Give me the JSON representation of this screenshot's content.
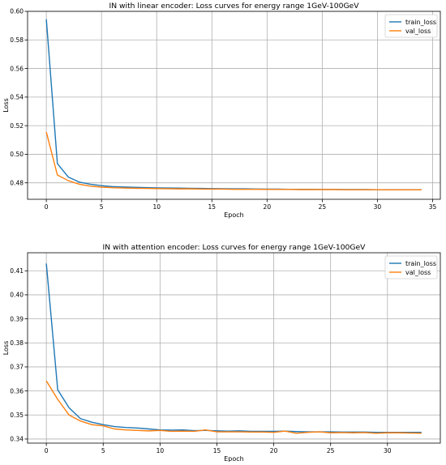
{
  "chart_data": [
    {
      "type": "line",
      "title": "IN with linear encoder: Loss curves for energy range 1GeV-100GeV",
      "xlabel": "Epoch",
      "ylabel": "Loss",
      "xlim": [
        -1.7,
        35.7
      ],
      "ylim": [
        0.4685,
        0.6
      ],
      "xticks": [
        0,
        5,
        10,
        15,
        20,
        25,
        30,
        35
      ],
      "yticks": [
        0.48,
        0.5,
        0.52,
        0.54,
        0.56,
        0.58,
        0.6
      ],
      "ytick_labels": [
        "0.48",
        "0.50",
        "0.52",
        "0.54",
        "0.56",
        "0.58",
        "0.60"
      ],
      "grid": true,
      "legend": "top-right",
      "series": [
        {
          "name": "train_loss",
          "color": "#1f77b4",
          "x": [
            0,
            1,
            2,
            3,
            4,
            5,
            6,
            7,
            8,
            9,
            10,
            11,
            12,
            13,
            14,
            15,
            16,
            17,
            18,
            19,
            20,
            21,
            22,
            23,
            24,
            25,
            26,
            27,
            28,
            29,
            30,
            31,
            32,
            33,
            34
          ],
          "values": [
            0.5945,
            0.4935,
            0.484,
            0.4805,
            0.479,
            0.478,
            0.4774,
            0.4771,
            0.4769,
            0.4767,
            0.4765,
            0.4764,
            0.4763,
            0.4762,
            0.4761,
            0.476,
            0.4759,
            0.4758,
            0.4758,
            0.4757,
            0.4756,
            0.4756,
            0.4755,
            0.4755,
            0.4755,
            0.4754,
            0.4754,
            0.4753,
            0.4753,
            0.4753,
            0.4752,
            0.4752,
            0.4752,
            0.4752,
            0.4752
          ]
        },
        {
          "name": "val_loss",
          "color": "#ff7f0e",
          "x": [
            0,
            1,
            2,
            3,
            4,
            5,
            6,
            7,
            8,
            9,
            10,
            11,
            12,
            13,
            14,
            15,
            16,
            17,
            18,
            19,
            20,
            21,
            22,
            23,
            24,
            25,
            26,
            27,
            28,
            29,
            30,
            31,
            32,
            33,
            34
          ],
          "values": [
            0.5155,
            0.4855,
            0.4815,
            0.479,
            0.4777,
            0.477,
            0.4766,
            0.4764,
            0.4762,
            0.4761,
            0.476,
            0.4759,
            0.4758,
            0.4758,
            0.4757,
            0.4756,
            0.4756,
            0.4755,
            0.4755,
            0.4755,
            0.4754,
            0.4754,
            0.4754,
            0.4753,
            0.4753,
            0.4753,
            0.4753,
            0.4752,
            0.4752,
            0.4752,
            0.4752,
            0.4751,
            0.4751,
            0.4751,
            0.4751
          ]
        }
      ]
    },
    {
      "type": "line",
      "title": "IN with attention encoder: Loss curves for energy range 1GeV-100GeV",
      "xlabel": "Epoch",
      "ylabel": "Loss",
      "xlim": [
        -1.65,
        34.65
      ],
      "ylim": [
        0.3383,
        0.4175
      ],
      "xticks": [
        0,
        5,
        10,
        15,
        20,
        25,
        30
      ],
      "yticks": [
        0.34,
        0.35,
        0.36,
        0.37,
        0.38,
        0.39,
        0.4,
        0.41
      ],
      "ytick_labels": [
        "0.34",
        "0.35",
        "0.36",
        "0.37",
        "0.38",
        "0.39",
        "0.40",
        "0.41"
      ],
      "grid": true,
      "legend": "top-right",
      "series": [
        {
          "name": "train_loss",
          "color": "#1f77b4",
          "x": [
            0,
            1,
            2,
            3,
            4,
            5,
            6,
            7,
            8,
            9,
            10,
            11,
            12,
            13,
            14,
            15,
            16,
            17,
            18,
            19,
            20,
            21,
            22,
            23,
            24,
            25,
            26,
            27,
            28,
            29,
            30,
            31,
            32,
            33
          ],
          "values": [
            0.413,
            0.3605,
            0.353,
            0.3485,
            0.347,
            0.346,
            0.3452,
            0.3448,
            0.3446,
            0.3442,
            0.3438,
            0.3437,
            0.3438,
            0.3435,
            0.3436,
            0.3434,
            0.3433,
            0.3434,
            0.3432,
            0.3432,
            0.3432,
            0.3433,
            0.3431,
            0.343,
            0.343,
            0.343,
            0.3429,
            0.3429,
            0.3429,
            0.3428,
            0.3428,
            0.3428,
            0.3428,
            0.3428
          ]
        },
        {
          "name": "val_loss",
          "color": "#ff7f0e",
          "x": [
            0,
            1,
            2,
            3,
            4,
            5,
            6,
            7,
            8,
            9,
            10,
            11,
            12,
            13,
            14,
            15,
            16,
            17,
            18,
            19,
            20,
            21,
            22,
            23,
            24,
            25,
            26,
            27,
            28,
            29,
            30,
            31,
            32,
            33
          ],
          "values": [
            0.3642,
            0.3565,
            0.35,
            0.3475,
            0.346,
            0.3455,
            0.3442,
            0.3438,
            0.3436,
            0.3434,
            0.3436,
            0.3432,
            0.3433,
            0.3432,
            0.3438,
            0.343,
            0.343,
            0.343,
            0.3429,
            0.3429,
            0.3428,
            0.3433,
            0.3424,
            0.3428,
            0.343,
            0.3426,
            0.3427,
            0.3426,
            0.3427,
            0.3424,
            0.3426,
            0.3426,
            0.3425,
            0.3424
          ]
        }
      ]
    }
  ]
}
